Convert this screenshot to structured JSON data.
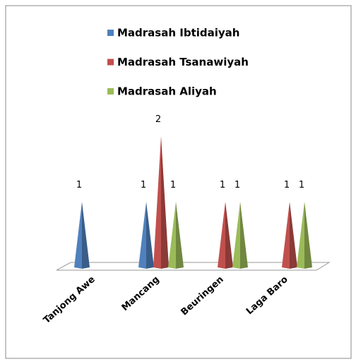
{
  "chart_data": {
    "type": "cone-bar",
    "categories": [
      "Tanjong Awe",
      "Mancang",
      "Beuringen",
      "Laga Baro"
    ],
    "series": [
      {
        "name": "Madrasah Ibtidaiyah",
        "color": "#4f81bd",
        "values": [
          1,
          1,
          null,
          null
        ]
      },
      {
        "name": "Madrasah Tsanawiyah",
        "color": "#c0504d",
        "values": [
          null,
          2,
          1,
          1
        ]
      },
      {
        "name": "Madrasah Aliyah",
        "color": "#9bbb59",
        "values": [
          null,
          1,
          1,
          1
        ]
      }
    ],
    "legend": "top"
  }
}
